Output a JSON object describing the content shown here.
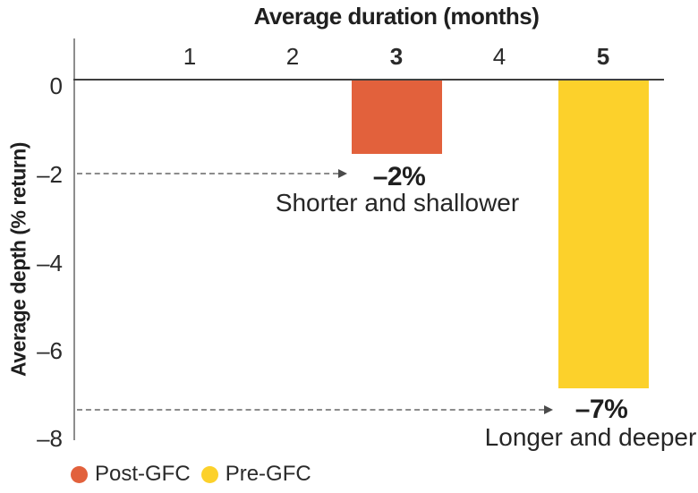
{
  "chart_data": {
    "type": "bar",
    "title": "Average duration (months)",
    "xlabel": "Average duration (months)",
    "ylabel": "Average depth (% return)",
    "x_ticks": [
      {
        "label": "1",
        "bold": false
      },
      {
        "label": "2",
        "bold": false
      },
      {
        "label": "3",
        "bold": true
      },
      {
        "label": "4",
        "bold": false
      },
      {
        "label": "5",
        "bold": true
      }
    ],
    "y_ticks": [
      "0",
      "–2",
      "–4",
      "–6",
      "–8"
    ],
    "ylim": [
      -8,
      0
    ],
    "xlim": [
      0,
      5.6
    ],
    "grid": false,
    "legend_position": "bottom-left",
    "series": [
      {
        "name": "Post-GFC",
        "duration_months": 3,
        "depth_pct": -2,
        "depth_drawn": -1.65,
        "value_label": "–2%",
        "annotation": "Shorter and shallower",
        "color": "#e2613c"
      },
      {
        "name": "Pre-GFC",
        "duration_months": 5,
        "depth_pct": -7,
        "depth_drawn": -6.9,
        "value_label": "–7%",
        "annotation": "Longer and deeper",
        "color": "#fcd12b"
      }
    ]
  },
  "colors": {
    "post_gfc": "#e2613c",
    "pre_gfc": "#fcd12b",
    "text": "#1f1f1f",
    "dashed_line": "#8c8c8c",
    "zero_line": "#3f3f3f",
    "axis_line": "#8d8d8d"
  }
}
